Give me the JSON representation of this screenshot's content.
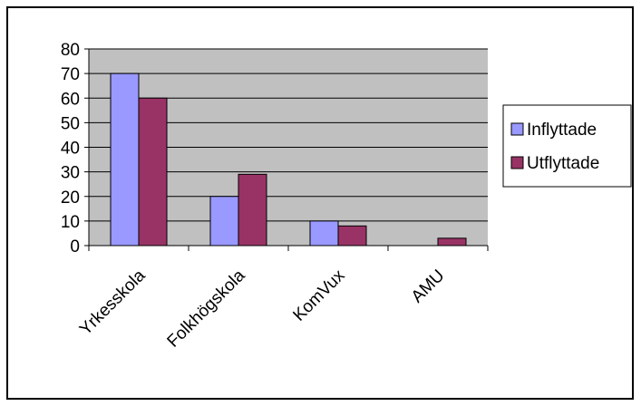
{
  "chart_data": {
    "type": "bar",
    "categories": [
      "Yrkesskola",
      "Folkhögskola",
      "KomVux",
      "AMU"
    ],
    "series": [
      {
        "name": "Inflyttade",
        "values": [
          70,
          20,
          10,
          0
        ],
        "color": "#9999ff"
      },
      {
        "name": "Utflyttade",
        "values": [
          60,
          29,
          8,
          3
        ],
        "color": "#993366"
      }
    ],
    "ylim": [
      0,
      80
    ],
    "yticks": [
      0,
      10,
      20,
      30,
      40,
      50,
      60,
      70,
      80
    ],
    "grid": true,
    "plot_background": "#c0c0c0",
    "legend_position": "right",
    "title": "",
    "xlabel": "",
    "ylabel": ""
  }
}
